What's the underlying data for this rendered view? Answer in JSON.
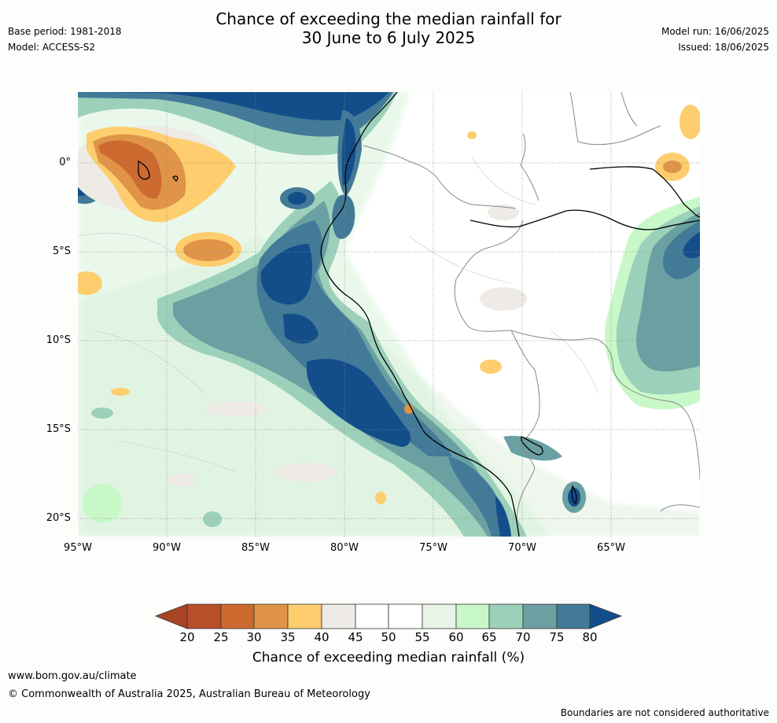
{
  "header": {
    "title_line1": "Chance of exceeding the median rainfall for",
    "title_line2": "30 June to 6 July 2025",
    "base_period": "Base period: 1981-2018",
    "model": "Model: ACCESS-S2",
    "model_run": "Model run: 16/06/2025",
    "issued": "Issued: 18/06/2025"
  },
  "map": {
    "lat_labels": [
      "0°",
      "5°S",
      "10°S",
      "15°S",
      "20°S"
    ],
    "lon_labels": [
      "95°W",
      "90°W",
      "85°W",
      "80°W",
      "75°W",
      "70°W",
      "65°W"
    ],
    "gridlines": "dotted",
    "region": "Eastern Pacific / western South America"
  },
  "colorbar": {
    "ticks": [
      "20",
      "25",
      "30",
      "35",
      "40",
      "45",
      "50",
      "55",
      "60",
      "65",
      "70",
      "75",
      "80"
    ],
    "colors": [
      "#a94425",
      "#b84e2a",
      "#cc6a30",
      "#e09448",
      "#fdcd6e",
      "#eeeae6",
      "#ffffff",
      "#ffffff",
      "#e8f4e8",
      "#c8f8c8",
      "#9cd0ba",
      "#6aa0a2",
      "#427a98",
      "#134e8a"
    ],
    "label": "Chance of exceeding median rainfall (%)"
  },
  "footer": {
    "website": "www.bom.gov.au/climate",
    "copyright": "© Commonwealth of Australia 2025, Australian Bureau of Meteorology",
    "disclaimer": "Boundaries are not considered authoritative"
  }
}
